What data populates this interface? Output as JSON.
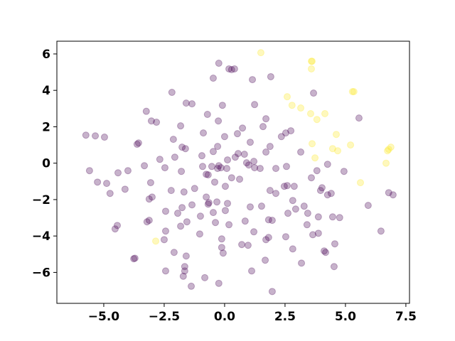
{
  "chart_data": {
    "type": "scatter",
    "xlim": [
      -6.94,
      7.65
    ],
    "ylim": [
      -7.7,
      6.7
    ],
    "xticks": [
      {
        "value": -5,
        "label": "−5.0"
      },
      {
        "value": -2.5,
        "label": "−2.5"
      },
      {
        "value": 0,
        "label": "0.0"
      },
      2.5,
      {
        "value": 5,
        "label": "5.0"
      },
      7.5
    ],
    "yticks": [
      {
        "value": -6,
        "label": "−6"
      },
      {
        "value": -4,
        "label": "−4"
      },
      {
        "value": -2,
        "label": "−2"
      },
      0,
      2,
      4,
      6
    ],
    "alpha": 0.3,
    "series": [
      {
        "color": "#440154",
        "x": [
          -0.24,
          0.18,
          0.29,
          0.41,
          -0.47,
          1.15,
          1.91,
          -2.18,
          1.24,
          3.68,
          -3.24,
          -1.59,
          -1.35,
          -0.09,
          -0.71,
          -3.03,
          -2.82,
          -1.82,
          1.71,
          1.59,
          -0.26,
          0.74,
          2.53,
          2.74,
          2.35,
          5.56,
          -5.74,
          -5.35,
          -4.97,
          -3.56,
          -3.62,
          -2.12,
          -0.88,
          0,
          0.53,
          -1.76,
          -1.62,
          1.06,
          1.88,
          -0.29,
          -2.68,
          -3.32,
          -4,
          -2.06,
          -0.94,
          -0.47,
          0.44,
          0.56,
          0.82,
          1.21,
          0.91,
          0.12,
          -0.24,
          -0.29,
          -0.15,
          0.09,
          -0.91,
          -0.53,
          -0.76,
          -0.68,
          -1.79,
          -2.47,
          -3.06,
          -4.41,
          -5.59,
          -5.26,
          -4.88,
          -4.74,
          -4.12,
          -3.12,
          -2.21,
          -1.68,
          -1.24,
          -0.76,
          -0.41,
          0.03,
          0.29,
          0.62,
          1,
          1.24,
          1.71,
          1.47,
          2.12,
          2.56,
          3.15,
          3.59,
          3.82,
          4.26,
          4.03,
          4.41,
          4.94,
          2.47,
          2.59,
          2.88,
          1.88,
          2.12,
          3.97,
          4.26,
          2.82,
          2.94,
          3.29,
          3.44,
          2.62,
          1.53,
          0.03,
          0.12,
          -0.32,
          -0.65,
          -1.35,
          -1.76,
          -1.94,
          -0.47,
          -0.68,
          -2.44,
          -3,
          -3.12,
          -2.44,
          -1.56,
          -1,
          -0.38,
          0.18,
          0.85,
          1.06,
          1.82,
          1.97,
          1.21,
          1.82,
          2.53,
          3.41,
          3.88,
          4.47,
          4.76,
          3.65,
          3.88,
          5.94,
          6.79,
          6.97,
          6.47,
          -4.44,
          -4.53,
          -3.21,
          -1.82,
          -2.5,
          -1.03,
          -0.12,
          -0.12,
          -0.06,
          0.71,
          0.97,
          1.71,
          2.82,
          4.12,
          4.18,
          4.56,
          4.53,
          3.18,
          1.68,
          1.12,
          1.97,
          -1.59,
          -2.09,
          -1.65,
          -1.65,
          -2.44,
          -3.71,
          -3.76,
          -1.71,
          -1.38,
          -0.82,
          -0.24
        ],
        "y": [
          5.49,
          5.18,
          5.14,
          5.18,
          4.67,
          4.59,
          4.75,
          3.89,
          3.22,
          3.85,
          2.85,
          3.3,
          3.26,
          3.18,
          2.68,
          2.32,
          2.25,
          2.05,
          2.44,
          2.01,
          2.32,
          1.93,
          1.66,
          1.78,
          1.46,
          2.48,
          1.54,
          1.5,
          1.43,
          1.11,
          1.04,
          1.31,
          1.66,
          1.46,
          1.62,
          0.88,
          0.8,
          1.15,
          0.92,
          0.92,
          0.21,
          -0.14,
          -0.41,
          0.33,
          0.41,
          0.64,
          0.33,
          0.53,
          0.49,
          0.1,
          0.02,
          0.18,
          -0.14,
          -0.29,
          -0.25,
          -0.29,
          -0.18,
          -0.18,
          -0.61,
          -0.64,
          -0.45,
          -0.25,
          -1.07,
          -0.53,
          -0.41,
          -1.04,
          -1.11,
          -1.66,
          -1.43,
          -1.97,
          -1.5,
          -1.58,
          -1.39,
          -1.86,
          -1.04,
          -1.27,
          -0.8,
          -0.88,
          -0.1,
          -0.25,
          0.61,
          -0.29,
          -0.29,
          -0.18,
          0.61,
          -0.8,
          -0.41,
          -0.06,
          -1.35,
          -1.66,
          -0.45,
          -1.27,
          -1.23,
          -1.27,
          -1.5,
          -1.66,
          -1.5,
          -1.74,
          -2.05,
          -2.52,
          -2.36,
          -2.75,
          -2.75,
          -2.36,
          -2.6,
          -2.21,
          -2.13,
          -2.17,
          -2.29,
          -2.44,
          -2.75,
          -2.71,
          -2.25,
          -2.64,
          -1.86,
          -3.14,
          -3.73,
          -3.22,
          -2.91,
          -3.26,
          -3.38,
          -3.18,
          -2.4,
          -3.11,
          -3.14,
          -3.77,
          -4.08,
          -4.04,
          -3.38,
          -2.95,
          -2.95,
          -2.99,
          -3.93,
          -3.85,
          -2.32,
          -1.62,
          -1.74,
          -3.73,
          -3.42,
          -3.61,
          -3.22,
          -3.46,
          -4.2,
          -3.89,
          -4.16,
          -4.63,
          -4.94,
          -4.47,
          -4.51,
          -4.2,
          -4.71,
          -4.82,
          -4.9,
          -4.43,
          -5.68,
          -5.49,
          -5.33,
          -5.92,
          -7.05,
          -5.1,
          -4.9,
          -5.68,
          -5.92,
          -5.92,
          -5.22,
          -5.25,
          -6.21,
          -6.76,
          -6.29,
          -6.6
        ]
      },
      {
        "color": "#fde725",
        "x": [
          1.5,
          3.59,
          3.62,
          3.59,
          2.59,
          2.79,
          3.15,
          3.56,
          3.82,
          4.15,
          4.62,
          3.62,
          3.74,
          4.47,
          4.68,
          5.21,
          5.29,
          5.35,
          5.62,
          6.68,
          6.74,
          6.79,
          6.88,
          -2.85
        ],
        "y": [
          6.07,
          5.6,
          5.6,
          5.18,
          3.65,
          3.18,
          3.03,
          2.72,
          2.4,
          2.72,
          1.58,
          1.07,
          0.29,
          0.8,
          0.68,
          1.0,
          3.93,
          3.93,
          -1.07,
          0,
          0.68,
          0.76,
          0.88,
          -4.28
        ]
      }
    ]
  }
}
